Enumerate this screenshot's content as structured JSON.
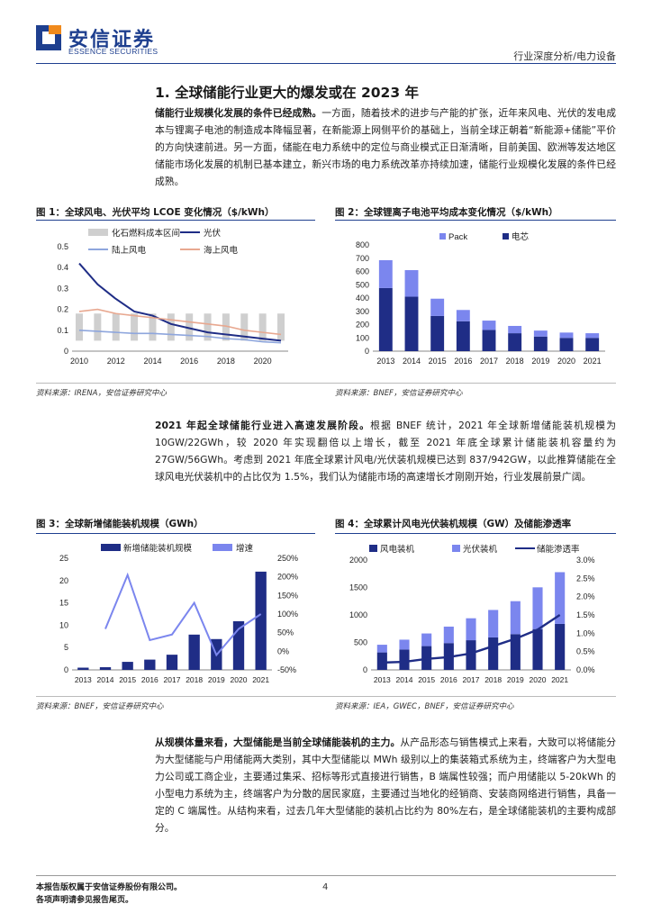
{
  "header": {
    "logo_cn": "安信证券",
    "logo_en": "ESSENCE SECURITIES",
    "category": "行业深度分析/电力设备",
    "brand_color": "#1e3f8f"
  },
  "section_title": "1. 全球储能行业更大的爆发或在 2023 年",
  "para1": {
    "lead": "储能行业规模化发展的条件已经成熟。",
    "body": "一方面，随着技术的进步与产能的扩张，近年来风电、光伏的发电成本与锂离子电池的制造成本降幅显著，在新能源上网侧平价的基础上，当前全球正朝着“新能源+储能”平价的方向快速前进。另一方面，储能在电力系统中的定位与商业模式正日渐清晰，目前美国、欧洲等发达地区储能市场化发展的机制已基本建立，新兴市场的电力系统改革亦持续加速，储能行业规模化发展的条件已经成熟。"
  },
  "para2": {
    "lead": "2021 年起全球储能行业进入高速发展阶段。",
    "body": "根据 BNEF 统计，2021 年全球新增储能装机规模为 10GW/22GWh，较 2020 年实现翻倍以上增长，截至 2021 年底全球累计储能装机容量约为 27GW/56GWh。考虑到 2021 年底全球累计风电/光伏装机规模已达到 837/942GW，以此推算储能在全球风电光伏装机中的占比仅为 1.5%，我们认为储能市场的高速增长才刚刚开始，行业发展前景广阔。"
  },
  "para3": {
    "lead": "从规模体量来看，大型储能是当前全球储能装机的主力。",
    "body": "从产品形态与销售模式上来看，大致可以将储能分为大型储能与户用储能两大类别，其中大型储能以 MWh 级别以上的集装箱式系统为主，终端客户为大型电力公司或工商企业，主要通过集采、招标等形式直接进行销售，B 端属性较强；而户用储能以 5-20kWh 的小型电力系统为主，终端客户为分散的居民家庭，主要通过当地化的经销商、安装商网络进行销售，具备一定的 C 端属性。从结构来看，过去几年大型储能的装机占比约为 80%左右，是全球储能装机的主要构成部分。"
  },
  "figures": {
    "fig1": {
      "title": "图 1：全球风电、光伏平均 LCOE 变化情况（$/kWh）",
      "source": "资料来源：IRENA，安信证券研究中心"
    },
    "fig2": {
      "title": "图 2：全球锂离子电池平均成本变化情况（$/kWh）",
      "source": "资料来源：BNEF，安信证券研究中心"
    },
    "fig3": {
      "title": "图 3：全球新增储能装机规模（GWh）",
      "source": "资料来源：BNEF，安信证券研究中心"
    },
    "fig4": {
      "title": "图 4：全球累计风电光伏装机规模（GW）及储能渗透率",
      "source": "资料来源：IEA，GWEC，BNEF，安信证券研究中心"
    }
  },
  "chart_data": [
    {
      "type": "line",
      "id": "fig1",
      "years": [
        2010,
        2011,
        2012,
        2013,
        2014,
        2015,
        2016,
        2017,
        2018,
        2019,
        2020,
        2021
      ],
      "x_ticks": [
        "2010",
        "2012",
        "2014",
        "2016",
        "2018",
        "2020"
      ],
      "ylim": [
        0,
        0.5
      ],
      "y_ticks": [
        "0",
        "0.1",
        "0.2",
        "0.3",
        "0.4",
        "0.5"
      ],
      "band_series": {
        "name": "化石燃料成本区间",
        "low": 0.05,
        "high": 0.18,
        "color": "#cfcfcf"
      },
      "series": [
        {
          "name": "光伏",
          "color": "#1f2d86",
          "values": [
            0.42,
            0.32,
            0.25,
            0.19,
            0.17,
            0.13,
            0.11,
            0.09,
            0.08,
            0.07,
            0.06,
            0.05
          ]
        },
        {
          "name": "陆上风电",
          "color": "#8ea6dd",
          "values": [
            0.1,
            0.095,
            0.09,
            0.085,
            0.085,
            0.08,
            0.075,
            0.07,
            0.06,
            0.055,
            0.045,
            0.04
          ]
        },
        {
          "name": "海上风电",
          "color": "#e8a890",
          "values": [
            0.19,
            0.2,
            0.18,
            0.17,
            0.16,
            0.15,
            0.14,
            0.13,
            0.12,
            0.1,
            0.09,
            0.08
          ]
        }
      ],
      "legend": [
        "化石燃料成本区间",
        "光伏",
        "陆上风电",
        "海上风电"
      ]
    },
    {
      "type": "bar",
      "id": "fig2",
      "stacked": true,
      "categories": [
        "2013",
        "2014",
        "2015",
        "2016",
        "2017",
        "2018",
        "2019",
        "2020",
        "2021"
      ],
      "ylim": [
        0,
        800
      ],
      "y_ticks": [
        "0",
        "100",
        "200",
        "300",
        "400",
        "500",
        "600",
        "700",
        "800"
      ],
      "series": [
        {
          "name": "电芯",
          "color": "#1f2d86",
          "values": [
            475,
            410,
            265,
            225,
            160,
            135,
            110,
            100,
            100
          ]
        },
        {
          "name": "Pack",
          "color": "#7b86ee",
          "values": [
            210,
            200,
            130,
            85,
            70,
            55,
            45,
            40,
            35
          ]
        }
      ]
    },
    {
      "type": "bar",
      "id": "fig3",
      "categories": [
        "2013",
        "2014",
        "2015",
        "2016",
        "2017",
        "2018",
        "2019",
        "2020",
        "2021"
      ],
      "ylim": [
        0,
        25
      ],
      "y_ticks": [
        "0",
        "5",
        "10",
        "15",
        "20",
        "25"
      ],
      "y2lim": [
        -50,
        250
      ],
      "y2_ticks": [
        "-50%",
        "0%",
        "50%",
        "100%",
        "150%",
        "200%",
        "250%"
      ],
      "series": [
        {
          "name": "新增储能装机规模",
          "color": "#1f2d86",
          "values": [
            0.5,
            0.6,
            1.8,
            2.3,
            3.4,
            7.9,
            6.9,
            10.9,
            22.0
          ]
        },
        {
          "name": "增速",
          "color": "#7b86ee",
          "type": "line",
          "values": [
            null,
            60,
            205,
            30,
            45,
            130,
            -10,
            60,
            100
          ]
        }
      ]
    },
    {
      "type": "bar",
      "id": "fig4",
      "stacked": true,
      "categories": [
        "2013",
        "2014",
        "2015",
        "2016",
        "2017",
        "2018",
        "2019",
        "2020",
        "2021"
      ],
      "ylim": [
        0,
        2000
      ],
      "y_ticks": [
        "0",
        "500",
        "1000",
        "1500",
        "2000"
      ],
      "y2lim": [
        0,
        3.0
      ],
      "y2_ticks": [
        "0.0%",
        "0.5%",
        "1.0%",
        "1.5%",
        "2.0%",
        "2.5%",
        "3.0%"
      ],
      "series": [
        {
          "name": "风电装机",
          "color": "#1f2d86",
          "values": [
            318,
            370,
            433,
            488,
            540,
            591,
            651,
            743,
            837
          ]
        },
        {
          "name": "光伏装机",
          "color": "#7b86ee",
          "values": [
            140,
            180,
            230,
            300,
            400,
            500,
            600,
            760,
            942
          ]
        },
        {
          "name": "储能渗透率",
          "color": "#1f2d86",
          "type": "line",
          "values": [
            0.2,
            0.22,
            0.3,
            0.35,
            0.45,
            0.65,
            0.85,
            1.1,
            1.5
          ]
        }
      ]
    }
  ],
  "footer": {
    "line1": "本报告版权属于安信证券股份有限公司。",
    "line2": "各项声明请参见报告尾页。",
    "page": "4"
  }
}
